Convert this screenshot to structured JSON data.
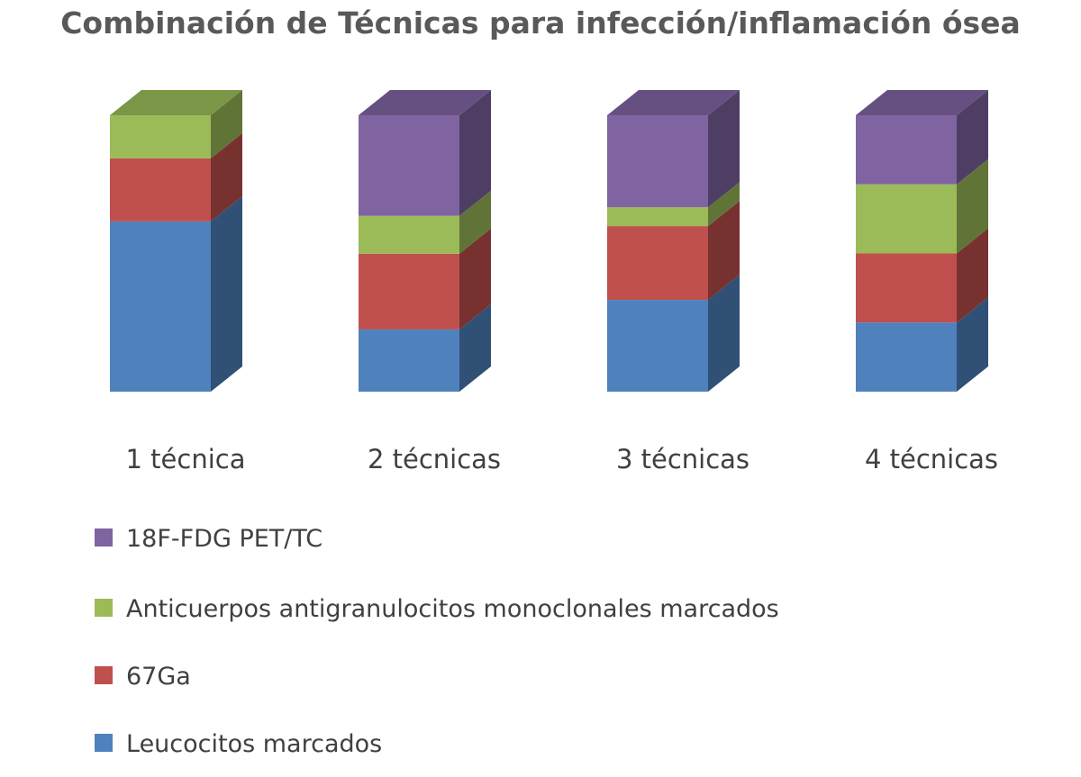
{
  "chart_data": {
    "type": "bar",
    "stacked": "percent",
    "style": "3d-column",
    "title": "Combinación de Técnicas para infección/inflamación ósea",
    "categories": [
      "1 técnica",
      "2 técnicas",
      "3 técnicas",
      "4 técnicas"
    ],
    "series": [
      {
        "name": "Leucocitos marcados",
        "color": "#4F81BD",
        "values": [
          61.6,
          22.5,
          33.2,
          25
        ]
      },
      {
        "name": "67Ga",
        "color": "#C0504D",
        "values": [
          22.8,
          27.4,
          26.7,
          25
        ]
      },
      {
        "name": "Anticuerpos antigranulocitos monoclonales marcados",
        "color": "#9BBB59",
        "values": [
          15.6,
          13.7,
          6.8,
          25
        ]
      },
      {
        "name": "18F-FDG PET/TC",
        "color": "#8064A2",
        "values": [
          0,
          36.4,
          33.3,
          25
        ]
      }
    ],
    "ylim": [
      0,
      100
    ],
    "grid": false,
    "axes_visible": false,
    "legend_placement": "bottom-left"
  }
}
